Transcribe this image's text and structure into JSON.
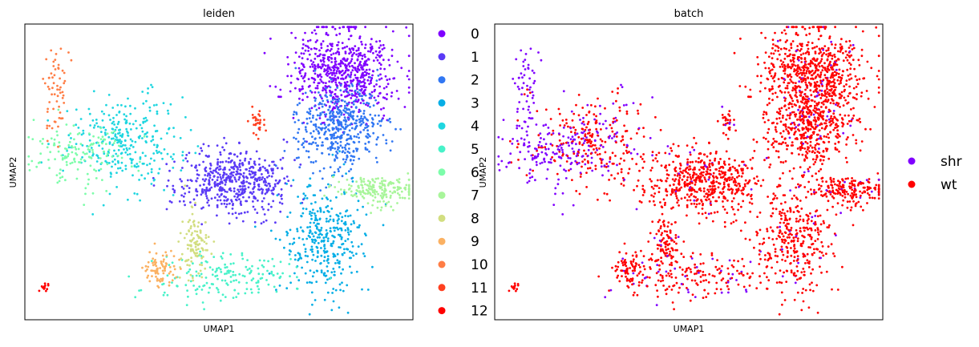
{
  "chart_data": [
    {
      "type": "scatter",
      "title": "leiden",
      "xlabel": "UMAP1",
      "ylabel": "UMAP2",
      "xlim": [
        0,
        100
      ],
      "ylim": [
        0,
        100
      ],
      "grid": false,
      "legend_placement": "right",
      "series": [
        {
          "name": "0",
          "color": "#7f00ff"
        },
        {
          "name": "1",
          "color": "#5a3af6"
        },
        {
          "name": "2",
          "color": "#3177f3"
        },
        {
          "name": "3",
          "color": "#06aee6"
        },
        {
          "name": "4",
          "color": "#1fd6e0"
        },
        {
          "name": "5",
          "color": "#48f2c9"
        },
        {
          "name": "6",
          "color": "#7dfdaa"
        },
        {
          "name": "7",
          "color": "#a8f59a"
        },
        {
          "name": "8",
          "color": "#d2de80"
        },
        {
          "name": "9",
          "color": "#fbb162"
        },
        {
          "name": "10",
          "color": "#ff7d45"
        },
        {
          "name": "11",
          "color": "#ff4020"
        },
        {
          "name": "12",
          "color": "#ff0000"
        }
      ]
    },
    {
      "type": "scatter",
      "title": "batch",
      "xlabel": "UMAP1",
      "ylabel": "UMAP2",
      "xlim": [
        0,
        100
      ],
      "ylim": [
        0,
        100
      ],
      "grid": false,
      "legend_placement": "right",
      "series": [
        {
          "name": "shr",
          "color": "#8000ff"
        },
        {
          "name": "wt",
          "color": "#ff0000"
        }
      ]
    }
  ],
  "clusters": [
    {
      "label": "0",
      "cx": 82,
      "cy": 84,
      "sx": 6.5,
      "sy": 7.5,
      "n": 650
    },
    {
      "label": "1",
      "cx": 54,
      "cy": 47,
      "sx": 7.5,
      "sy": 5.5,
      "n": 520
    },
    {
      "label": "2",
      "cx": 81,
      "cy": 65,
      "sx": 5.5,
      "sy": 7.0,
      "n": 460
    },
    {
      "label": "3",
      "cx": 77,
      "cy": 27,
      "sx": 5.5,
      "sy": 9.5,
      "n": 360
    },
    {
      "label": "4",
      "cx": 26,
      "cy": 60,
      "sx": 7.0,
      "sy": 8.0,
      "n": 300
    },
    {
      "label": "5",
      "cx": 52,
      "cy": 14,
      "sx": 9.0,
      "sy": 4.0,
      "n": 170
    },
    {
      "label": "6",
      "cx": 14,
      "cy": 56,
      "sx": 6.0,
      "sy": 5.0,
      "n": 140
    },
    {
      "label": "7",
      "cx": 91,
      "cy": 44,
      "sx": 5.0,
      "sy": 2.5,
      "n": 190
    },
    {
      "label": "8",
      "cx": 44,
      "cy": 25,
      "sx": 1.8,
      "sy": 6.0,
      "n": 110
    },
    {
      "label": "9",
      "cx": 35,
      "cy": 17,
      "sx": 2.2,
      "sy": 3.0,
      "n": 80
    },
    {
      "label": "10",
      "cx": 8,
      "cy": 79,
      "sx": 1.6,
      "sy": 7.0,
      "n": 60
    },
    {
      "label": "11",
      "cx": 60,
      "cy": 67,
      "sx": 0.8,
      "sy": 2.0,
      "n": 30
    },
    {
      "label": "12",
      "cx": 5,
      "cy": 11,
      "sx": 0.5,
      "sy": 0.8,
      "n": 12
    }
  ]
}
